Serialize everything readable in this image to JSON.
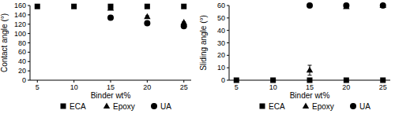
{
  "chart_data": [
    {
      "type": "scatter",
      "y_label": "Contact angle (°)",
      "x_label": "Binder wt%",
      "xlim": [
        4,
        26
      ],
      "ylim": [
        0,
        160
      ],
      "xticks": [
        5,
        10,
        15,
        20,
        25
      ],
      "yticks": [
        0,
        20,
        40,
        60,
        80,
        100,
        120,
        140,
        160
      ],
      "legend": "bottom",
      "series": [
        {
          "name": "ECA",
          "marker": "square",
          "color": "#000000",
          "x": [
            5,
            10,
            15,
            20,
            25
          ],
          "values": [
            158,
            158,
            158,
            158,
            158
          ],
          "errors": [
            1,
            1,
            1,
            1,
            1
          ]
        },
        {
          "name": "Epoxy",
          "marker": "triangle",
          "color": "#000000",
          "x": [
            15,
            20,
            25
          ],
          "values": [
            154,
            136,
            124
          ],
          "errors": [
            2,
            2,
            1
          ]
        },
        {
          "name": "UA",
          "marker": "circle",
          "color": "#000000",
          "x": [
            15,
            20,
            25
          ],
          "values": [
            134,
            122,
            116
          ],
          "errors": [
            4,
            1,
            1
          ]
        }
      ]
    },
    {
      "type": "scatter",
      "y_label": "Sliding angle (°)",
      "x_label": "Binder wt%",
      "xlim": [
        4,
        26
      ],
      "ylim": [
        0,
        60
      ],
      "xticks": [
        5,
        10,
        15,
        20,
        25
      ],
      "yticks": [
        0,
        10,
        20,
        30,
        40,
        50,
        60
      ],
      "legend": "bottom",
      "series": [
        {
          "name": "ECA",
          "marker": "square",
          "color": "#000000",
          "x": [
            5,
            10,
            15,
            20,
            25
          ],
          "values": [
            0,
            0,
            0,
            0,
            0
          ],
          "errors": [
            0,
            0,
            0,
            0,
            0
          ]
        },
        {
          "name": "Epoxy",
          "marker": "triangle",
          "color": "#000000",
          "x": [
            15,
            20,
            25
          ],
          "values": [
            8,
            59,
            60
          ],
          "errors": [
            4,
            1,
            1
          ]
        },
        {
          "name": "UA",
          "marker": "circle",
          "color": "#000000",
          "x": [
            15,
            20,
            25
          ],
          "values": [
            60,
            60,
            60
          ],
          "errors": [
            1,
            1,
            1
          ]
        }
      ]
    }
  ]
}
